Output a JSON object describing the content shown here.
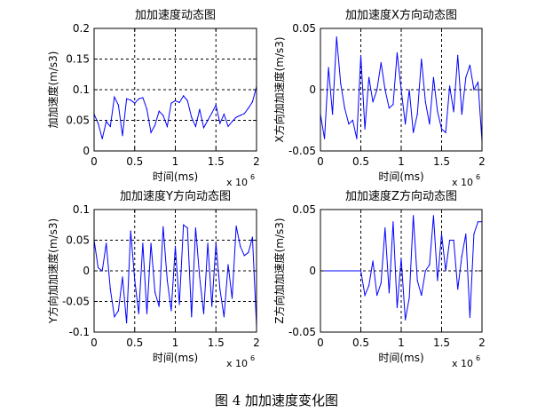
{
  "caption": "图 4  加加速度变化图",
  "chart_data": [
    {
      "type": "line",
      "title": "加加速度动态图",
      "xlabel": "时间(ms)",
      "ylabel": "加加速度(m/s3)",
      "x_exponent": "x 10",
      "x_exponent_power": "6",
      "xlim": [
        0,
        2
      ],
      "ylim": [
        0,
        0.2
      ],
      "xticks": [
        0,
        0.5,
        1,
        1.5,
        2
      ],
      "xtick_labels": [
        "0",
        "0.5",
        "1",
        "1.5",
        "2"
      ],
      "yticks": [
        0,
        0.05,
        0.1,
        0.15,
        0.2
      ],
      "ytick_labels": [
        "0",
        "0.05",
        "0.1",
        "0.15",
        "0.2"
      ],
      "grid": true,
      "line_color": "#0000ff",
      "x": [
        0,
        0.05,
        0.1,
        0.15,
        0.2,
        0.25,
        0.3,
        0.35,
        0.4,
        0.45,
        0.5,
        0.55,
        0.6,
        0.65,
        0.7,
        0.75,
        0.8,
        0.85,
        0.9,
        0.95,
        1.0,
        1.05,
        1.1,
        1.15,
        1.2,
        1.25,
        1.3,
        1.35,
        1.4,
        1.45,
        1.5,
        1.55,
        1.6,
        1.65,
        1.7,
        1.75,
        1.8,
        1.85,
        1.9,
        1.95,
        2.0
      ],
      "y": [
        0.06,
        0.045,
        0.02,
        0.048,
        0.04,
        0.088,
        0.075,
        0.025,
        0.085,
        0.083,
        0.078,
        0.085,
        0.087,
        0.068,
        0.03,
        0.042,
        0.065,
        0.058,
        0.04,
        0.078,
        0.082,
        0.079,
        0.09,
        0.082,
        0.055,
        0.04,
        0.068,
        0.038,
        0.05,
        0.062,
        0.075,
        0.045,
        0.06,
        0.04,
        0.048,
        0.055,
        0.058,
        0.061,
        0.07,
        0.08,
        0.105
      ]
    },
    {
      "type": "line",
      "title": "加加速度X方向动态图",
      "xlabel": "时间(ms)",
      "ylabel": "X方向加加速度(m/s3)",
      "x_exponent": "x 10",
      "x_exponent_power": "6",
      "xlim": [
        0,
        2
      ],
      "ylim": [
        -0.05,
        0.05
      ],
      "xticks": [
        0,
        0.5,
        1,
        1.5,
        2
      ],
      "xtick_labels": [
        "0",
        "0.5",
        "1",
        "1.5",
        "2"
      ],
      "yticks": [
        -0.05,
        0,
        0.05
      ],
      "ytick_labels": [
        "-0.05",
        "0",
        "0.05"
      ],
      "grid": true,
      "line_color": "#0000ff",
      "x": [
        0,
        0.05,
        0.1,
        0.15,
        0.2,
        0.25,
        0.3,
        0.35,
        0.4,
        0.45,
        0.5,
        0.55,
        0.6,
        0.65,
        0.7,
        0.75,
        0.8,
        0.85,
        0.9,
        0.95,
        1.0,
        1.05,
        1.1,
        1.15,
        1.2,
        1.25,
        1.3,
        1.35,
        1.4,
        1.45,
        1.5,
        1.55,
        1.6,
        1.65,
        1.7,
        1.75,
        1.8,
        1.85,
        1.9,
        1.95,
        2.0
      ],
      "y": [
        -0.02,
        -0.04,
        0.018,
        -0.02,
        0.043,
        0.005,
        -0.015,
        -0.028,
        -0.025,
        -0.04,
        0.028,
        -0.032,
        0.01,
        -0.01,
        0.0,
        0.022,
        0.0,
        -0.015,
        -0.012,
        0.03,
        0.0,
        -0.028,
        0.0,
        -0.035,
        -0.02,
        0.025,
        -0.01,
        -0.028,
        0.01,
        -0.018,
        -0.032,
        -0.035,
        0.003,
        -0.018,
        0.028,
        -0.02,
        0.01,
        0.02,
        0.0,
        0.006,
        -0.042
      ]
    },
    {
      "type": "line",
      "title": "加加速度Y方向动态图",
      "xlabel": "时间(ms)",
      "ylabel": "Y方向加加速度(m/s3)",
      "x_exponent": "x 10",
      "x_exponent_power": "6",
      "xlim": [
        0,
        2
      ],
      "ylim": [
        -0.1,
        0.1
      ],
      "xticks": [
        0,
        0.5,
        1,
        1.5,
        2
      ],
      "xtick_labels": [
        "0",
        "0.5",
        "1",
        "1.5",
        "2"
      ],
      "yticks": [
        -0.1,
        -0.05,
        0,
        0.05,
        0.1
      ],
      "ytick_labels": [
        "-0.1",
        "-0.05",
        "0",
        "0.05",
        "0.1"
      ],
      "grid": true,
      "line_color": "#0000ff",
      "x": [
        0,
        0.05,
        0.1,
        0.15,
        0.2,
        0.25,
        0.3,
        0.35,
        0.4,
        0.45,
        0.5,
        0.55,
        0.6,
        0.65,
        0.7,
        0.75,
        0.8,
        0.85,
        0.9,
        0.95,
        1.0,
        1.05,
        1.1,
        1.15,
        1.2,
        1.25,
        1.3,
        1.35,
        1.4,
        1.45,
        1.5,
        1.55,
        1.6,
        1.65,
        1.7,
        1.75,
        1.8,
        1.85,
        1.9,
        1.95,
        2.0
      ],
      "y": [
        0.05,
        0.005,
        0.0,
        0.045,
        -0.03,
        -0.075,
        -0.065,
        -0.01,
        -0.085,
        0.065,
        -0.015,
        -0.07,
        0.045,
        -0.07,
        0.045,
        -0.035,
        -0.058,
        0.072,
        -0.015,
        -0.065,
        0.04,
        -0.055,
        0.075,
        0.07,
        -0.075,
        0.07,
        -0.01,
        -0.07,
        0.045,
        -0.058,
        0.045,
        -0.03,
        -0.075,
        0.01,
        -0.045,
        0.073,
        0.04,
        0.025,
        0.03,
        0.055,
        -0.09
      ]
    },
    {
      "type": "line",
      "title": "加加速度Z方向动态图",
      "xlabel": "时间(ms)",
      "ylabel": "Z方向加加速度(m/s3)",
      "x_exponent": "x 10",
      "x_exponent_power": "6",
      "xlim": [
        0,
        2
      ],
      "ylim": [
        -0.05,
        0.05
      ],
      "xticks": [
        0,
        0.5,
        1,
        1.5,
        2
      ],
      "xtick_labels": [
        "0",
        "0.5",
        "1",
        "1.5",
        "2"
      ],
      "yticks": [
        -0.05,
        0,
        0.05
      ],
      "ytick_labels": [
        "-0.05",
        "0",
        "0.05"
      ],
      "grid": true,
      "line_color": "#0000ff",
      "x": [
        0,
        0.5,
        0.55,
        0.6,
        0.65,
        0.7,
        0.75,
        0.8,
        0.85,
        0.9,
        0.95,
        1.0,
        1.05,
        1.1,
        1.15,
        1.2,
        1.25,
        1.3,
        1.35,
        1.4,
        1.45,
        1.5,
        1.55,
        1.6,
        1.65,
        1.7,
        1.75,
        1.8,
        1.85,
        1.9,
        1.95,
        2.0
      ],
      "y": [
        0,
        0,
        -0.02,
        -0.012,
        0.008,
        -0.02,
        -0.01,
        0.035,
        -0.018,
        0.04,
        -0.03,
        0.01,
        -0.04,
        -0.022,
        0.045,
        -0.008,
        -0.02,
        0.0,
        0.005,
        0.045,
        -0.008,
        0.03,
        0.0,
        0.025,
        0.025,
        -0.015,
        0.012,
        0.03,
        -0.038,
        0.03,
        0.04,
        0.04
      ]
    }
  ]
}
